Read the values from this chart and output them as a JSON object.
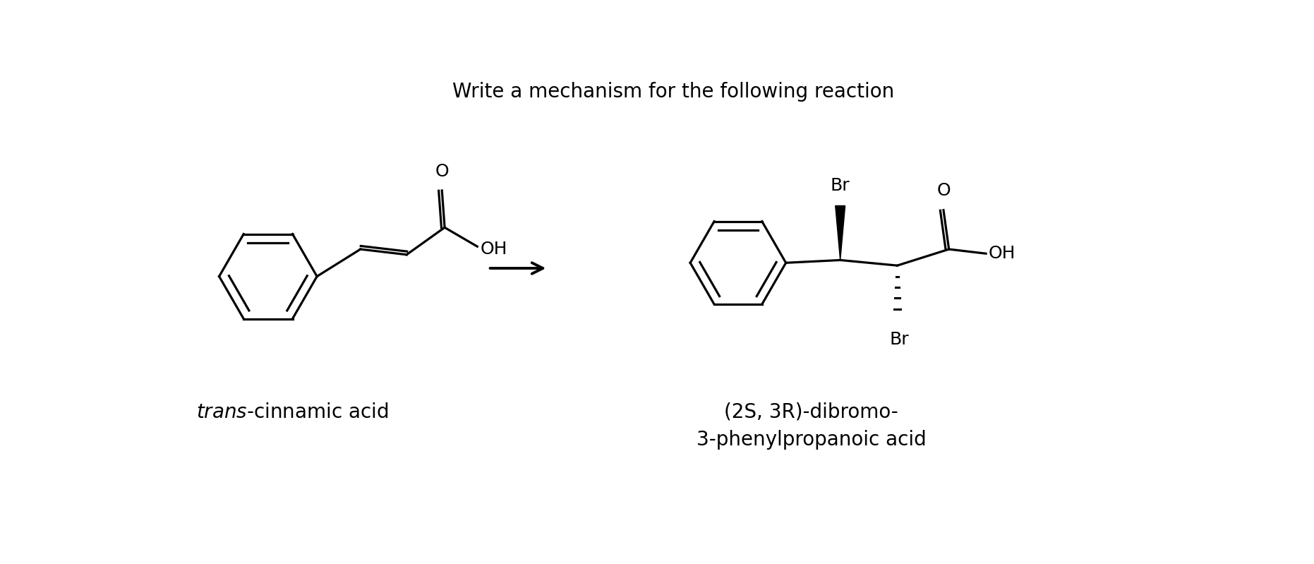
{
  "title": "Write a mechanism for the following reaction",
  "title_fontsize": 20,
  "label_left_italic": "trans",
  "label_left_rest": "-cinnamic acid",
  "label_right": "(2S, 3R)-dibromo-\n3-phenylpropanoic acid",
  "background_color": "#ffffff",
  "text_color": "#000000",
  "figsize": [
    18.62,
    7.99
  ],
  "dpi": 100,
  "lw": 2.3
}
